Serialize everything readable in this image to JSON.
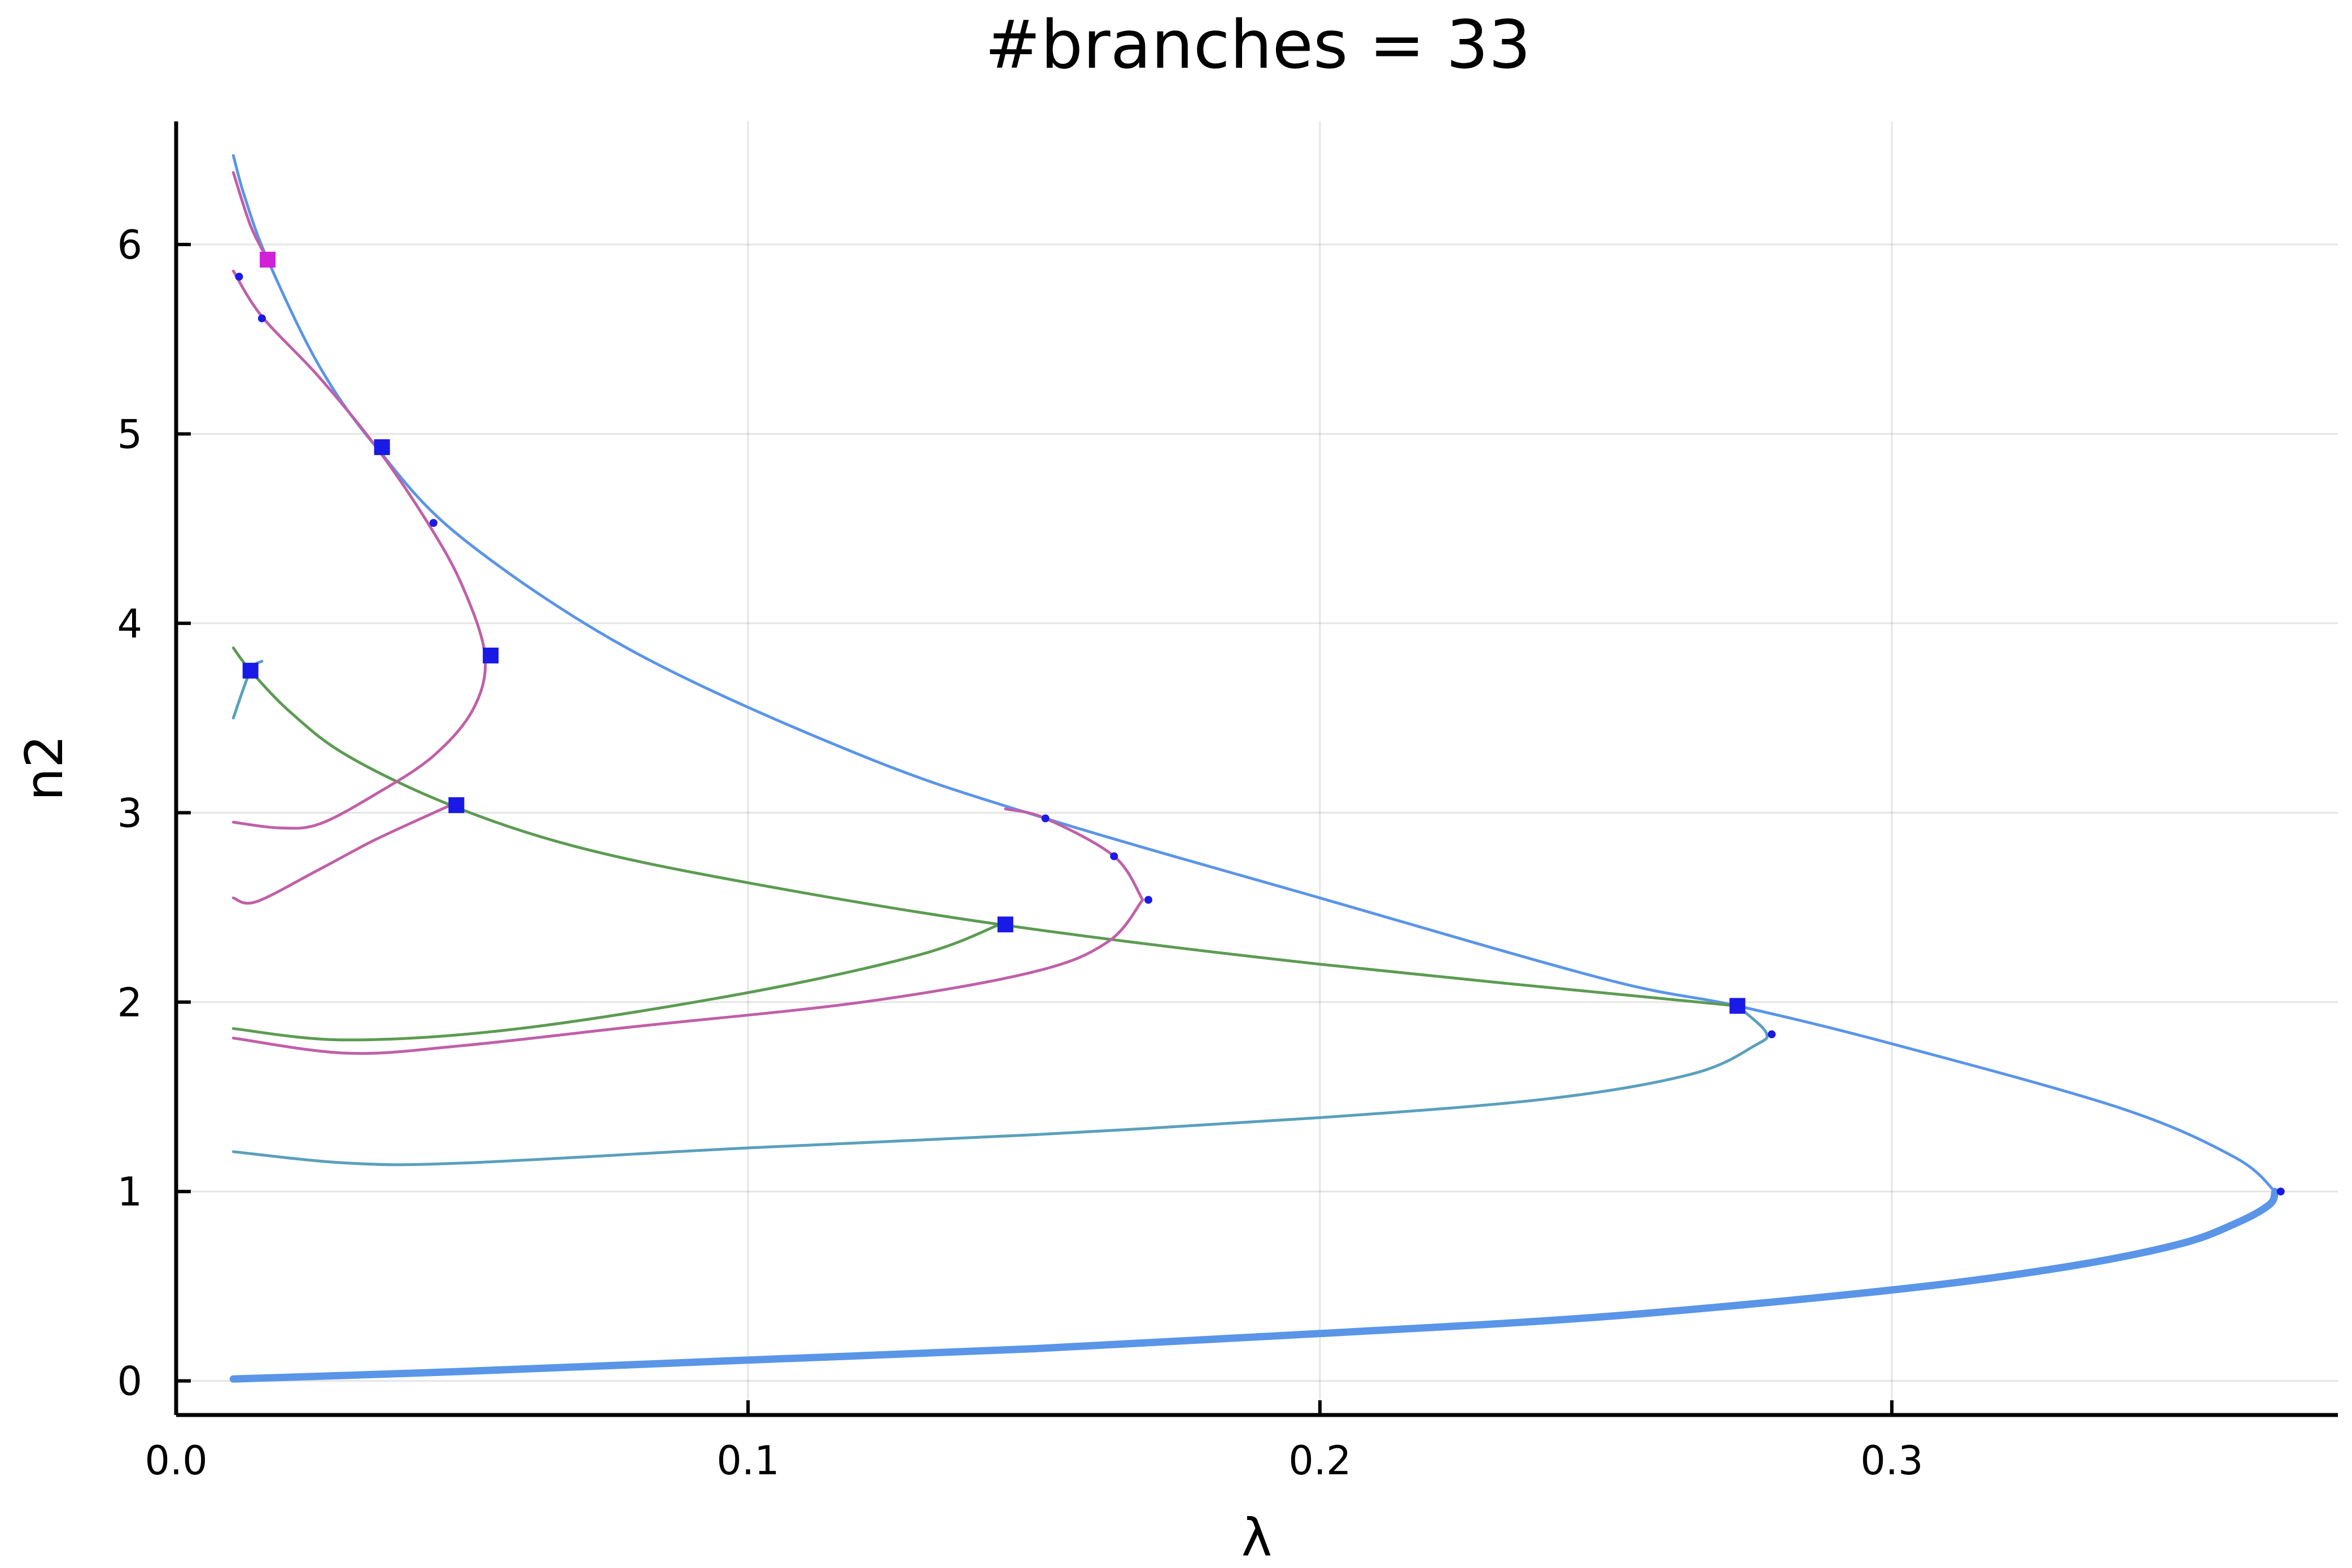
{
  "chart_data": {
    "type": "line",
    "title": "#branches = 33",
    "xlabel": "λ",
    "ylabel": "n2",
    "xlim": [
      0.0,
      0.378
    ],
    "ylim": [
      -0.18,
      6.65
    ],
    "grid": true,
    "legend": "none",
    "xticks": [
      {
        "value": 0.0,
        "label": "0.0"
      },
      {
        "value": 0.1,
        "label": "0.1"
      },
      {
        "value": 0.2,
        "label": "0.2"
      },
      {
        "value": 0.3,
        "label": "0.3"
      }
    ],
    "yticks": [
      {
        "value": 0,
        "label": "0"
      },
      {
        "value": 1,
        "label": "1"
      },
      {
        "value": 2,
        "label": "2"
      },
      {
        "value": 3,
        "label": "3"
      },
      {
        "value": 4,
        "label": "4"
      },
      {
        "value": 5,
        "label": "5"
      },
      {
        "value": 6,
        "label": "6"
      }
    ],
    "series": [
      {
        "color": "#5a95e8",
        "stroke": 13,
        "x": [
          0.01,
          0.05,
          0.1,
          0.15,
          0.2,
          0.25,
          0.3,
          0.33,
          0.35,
          0.36,
          0.366,
          0.367
        ],
        "y": [
          0.01,
          0.05,
          0.11,
          0.17,
          0.25,
          0.34,
          0.48,
          0.6,
          0.72,
          0.83,
          0.93,
          1.0
        ]
      },
      {
        "color": "#5a95e8",
        "stroke": 5,
        "x": [
          0.367,
          0.36,
          0.34,
          0.3,
          0.273,
          0.25,
          0.2,
          0.152,
          0.12,
          0.08,
          0.05,
          0.035,
          0.025,
          0.016,
          0.012,
          0.01
        ],
        "y": [
          1.0,
          1.18,
          1.44,
          1.78,
          1.98,
          2.12,
          2.55,
          2.97,
          3.3,
          3.85,
          4.45,
          4.93,
          5.36,
          5.92,
          6.25,
          6.47
        ]
      },
      {
        "color": "#5aa0bc",
        "stroke": 5,
        "x": [
          0.01,
          0.03,
          0.05,
          0.1,
          0.15,
          0.2,
          0.24,
          0.265,
          0.276,
          0.278,
          0.273
        ],
        "y": [
          1.21,
          1.15,
          1.15,
          1.23,
          1.3,
          1.39,
          1.49,
          1.62,
          1.77,
          1.84,
          1.98
        ]
      },
      {
        "color": "#5aa0bc",
        "stroke": 5,
        "x": [
          0.01,
          0.013,
          0.015
        ],
        "y": [
          3.5,
          3.75,
          3.8
        ]
      },
      {
        "color": "#5c9b52",
        "stroke": 5,
        "x": [
          0.01,
          0.03,
          0.06,
          0.1,
          0.13,
          0.144
        ],
        "y": [
          1.86,
          1.8,
          1.86,
          2.05,
          2.25,
          2.41
        ]
      },
      {
        "color": "#5c9b52",
        "stroke": 5,
        "x": [
          0.273,
          0.2,
          0.144,
          0.1,
          0.07,
          0.048,
          0.03,
          0.02,
          0.013,
          0.01
        ],
        "y": [
          1.98,
          2.2,
          2.41,
          2.63,
          2.82,
          3.04,
          3.3,
          3.53,
          3.75,
          3.87
        ]
      },
      {
        "color": "#c060a8",
        "stroke": 5,
        "x": [
          0.01,
          0.03,
          0.05,
          0.08,
          0.12,
          0.15,
          0.163,
          0.169
        ],
        "y": [
          1.81,
          1.73,
          1.77,
          1.87,
          2.0,
          2.16,
          2.32,
          2.54
        ]
      },
      {
        "color": "#c060a8",
        "stroke": 5,
        "x": [
          0.169,
          0.164,
          0.152,
          0.145
        ],
        "y": [
          2.54,
          2.77,
          2.97,
          3.02
        ]
      },
      {
        "color": "#c060a8",
        "stroke": 5,
        "x": [
          0.01,
          0.014,
          0.025,
          0.035,
          0.048
        ],
        "y": [
          2.55,
          2.53,
          2.7,
          2.86,
          3.04
        ]
      },
      {
        "color": "#c060a8",
        "stroke": 5,
        "x": [
          0.01,
          0.018,
          0.025,
          0.035,
          0.045,
          0.052,
          0.054,
          0.05,
          0.044,
          0.035,
          0.025,
          0.015,
          0.01
        ],
        "y": [
          2.95,
          2.92,
          2.94,
          3.1,
          3.3,
          3.55,
          3.83,
          4.2,
          4.53,
          4.93,
          5.3,
          5.62,
          5.86
        ]
      },
      {
        "color": "#c060a8",
        "stroke": 5,
        "x": [
          0.01,
          0.013,
          0.016
        ],
        "y": [
          6.38,
          6.1,
          5.92
        ]
      }
    ],
    "special_points": [
      {
        "type": "branch-point",
        "x": 0.016,
        "y": 5.92,
        "color": "#d020d8"
      },
      {
        "type": "branch-point",
        "x": 0.036,
        "y": 4.93,
        "color": "#1a1ae6"
      },
      {
        "type": "branch-point",
        "x": 0.055,
        "y": 3.83,
        "color": "#1a1ae6"
      },
      {
        "type": "branch-point",
        "x": 0.013,
        "y": 3.75,
        "color": "#1a1ae6"
      },
      {
        "type": "branch-point",
        "x": 0.049,
        "y": 3.04,
        "color": "#1a1ae6"
      },
      {
        "type": "branch-point",
        "x": 0.145,
        "y": 2.41,
        "color": "#1a1ae6"
      },
      {
        "type": "branch-point",
        "x": 0.273,
        "y": 1.98,
        "color": "#1a1ae6"
      },
      {
        "type": "fold-point",
        "x": 0.011,
        "y": 5.83,
        "color": "#1a1ae6"
      },
      {
        "type": "fold-point",
        "x": 0.015,
        "y": 5.61,
        "color": "#1a1ae6"
      },
      {
        "type": "fold-point",
        "x": 0.045,
        "y": 4.53,
        "color": "#1a1ae6"
      },
      {
        "type": "fold-point",
        "x": 0.152,
        "y": 2.97,
        "color": "#1a1ae6"
      },
      {
        "type": "fold-point",
        "x": 0.164,
        "y": 2.77,
        "color": "#1a1ae6"
      },
      {
        "type": "fold-point",
        "x": 0.17,
        "y": 2.54,
        "color": "#1a1ae6"
      },
      {
        "type": "fold-point",
        "x": 0.279,
        "y": 1.83,
        "color": "#1a1ae6"
      },
      {
        "type": "fold-point",
        "x": 0.368,
        "y": 1.0,
        "color": "#1a1ae6"
      }
    ]
  }
}
